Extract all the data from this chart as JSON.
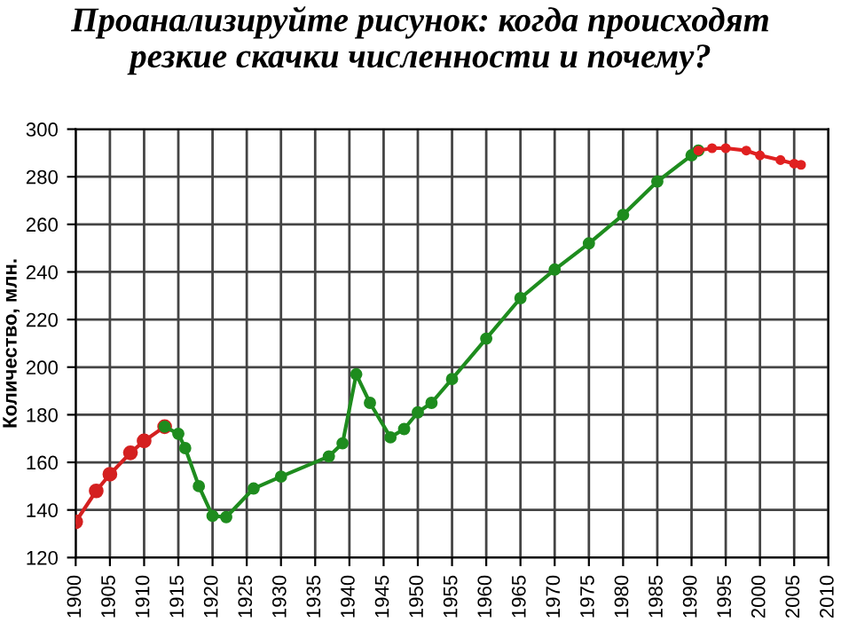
{
  "chart_data": {
    "type": "line",
    "title": "Проанализируйте рисунок: когда происходят\nрезкие скачки численности и почему?",
    "ylabel": "Количество, млн.",
    "series": [
      {
        "color": "#d42020",
        "x": [
          1900,
          1903,
          1905,
          1908,
          1910,
          1913
        ],
        "values": [
          135,
          148,
          155,
          164,
          169,
          175
        ]
      },
      {
        "color": "#1e8c1e",
        "x": [
          1913,
          1915,
          1916,
          1918,
          1920,
          1922,
          1926,
          1930,
          1937,
          1939,
          1941,
          1943,
          1946,
          1948,
          1950,
          1952,
          1955,
          1960,
          1965,
          1970,
          1975,
          1980,
          1985,
          1990,
          1991
        ],
        "values": [
          175,
          172,
          166,
          150,
          137.5,
          137,
          149,
          154,
          162.5,
          168,
          197,
          185,
          170.5,
          174,
          181,
          185,
          195,
          212,
          229,
          241,
          252,
          264,
          278,
          289,
          291
        ]
      },
      {
        "color": "#e02020",
        "x": [
          1991,
          1993,
          1995,
          1998,
          2000,
          2003,
          2005,
          2006
        ],
        "values": [
          291,
          292,
          292,
          291,
          289,
          287,
          285.5,
          285
        ]
      }
    ],
    "xlim": [
      1900,
      2010
    ],
    "xticks": [
      1900,
      1905,
      1910,
      1915,
      1920,
      1925,
      1930,
      1935,
      1940,
      1945,
      1950,
      1955,
      1960,
      1965,
      1970,
      1975,
      1980,
      1985,
      1990,
      1995,
      2000,
      2005,
      2010
    ],
    "ylim": [
      120,
      300
    ],
    "yticks": [
      120,
      140,
      160,
      180,
      200,
      220,
      240,
      260,
      280,
      300
    ],
    "grid": true,
    "marker": "circle",
    "line_style": "solid"
  }
}
